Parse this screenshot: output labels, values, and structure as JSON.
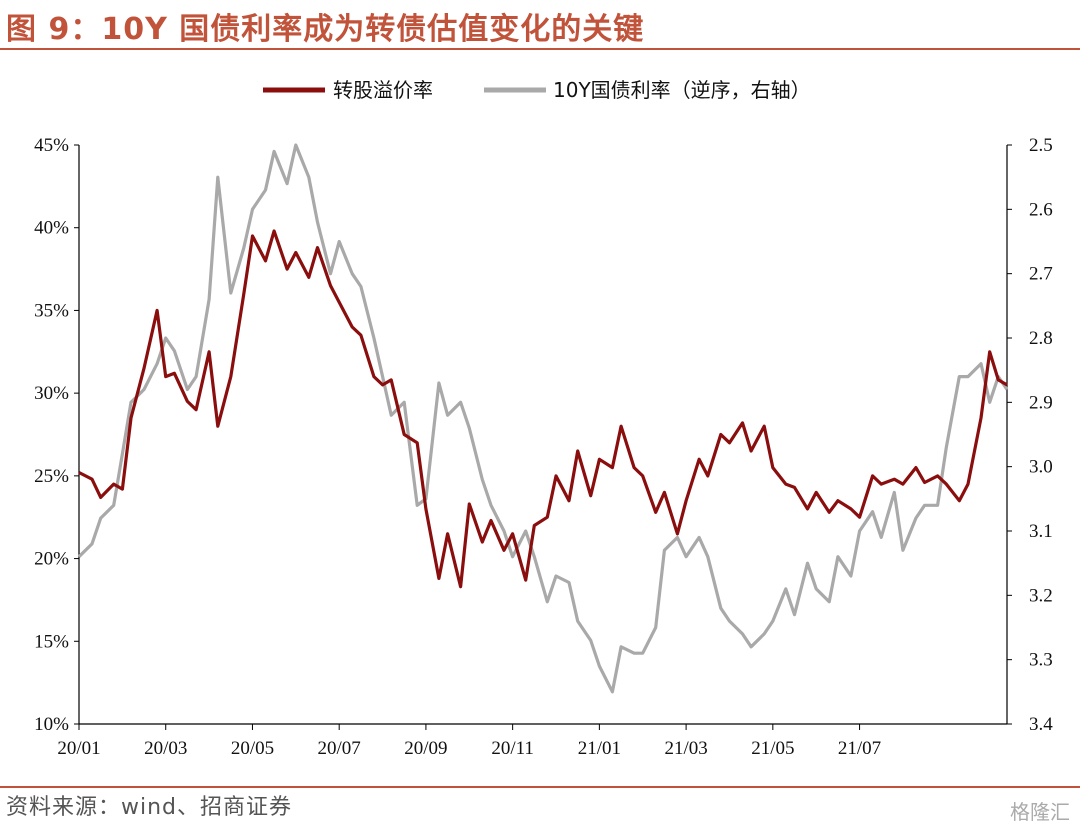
{
  "header": {
    "title": "图 9：10Y 国债利率成为转债估值变化的关键"
  },
  "footer": {
    "source": "资料来源：wind、招商证券",
    "watermark": "格隆汇"
  },
  "colors": {
    "accent": "#c0533a",
    "premium": "#8b0e0e",
    "yield": "#a9a9a9"
  },
  "chart_data": {
    "type": "line",
    "title": "10Y 国债利率成为转债估值变化的关键",
    "x_labels": [
      "20/01",
      "20/03",
      "20/05",
      "20/07",
      "20/09",
      "20/11",
      "21/01",
      "21/03",
      "21/05",
      "21/07"
    ],
    "x_range": [
      0,
      21.4
    ],
    "y_left": {
      "min": 10,
      "max": 45,
      "ticks": [
        "10%",
        "15%",
        "20%",
        "25%",
        "30%",
        "35%",
        "40%",
        "45%"
      ]
    },
    "y_right": {
      "min": 2.5,
      "max": 3.4,
      "inverted": true,
      "ticks": [
        "2.5",
        "2.6",
        "2.7",
        "2.8",
        "2.9",
        "3.0",
        "3.1",
        "3.2",
        "3.3",
        "3.4"
      ]
    },
    "legend": {
      "position": "top-center"
    },
    "series": [
      {
        "name": "转股溢价率",
        "axis": "left",
        "x": [
          0.0,
          0.3,
          0.5,
          0.8,
          1.0,
          1.2,
          1.5,
          1.8,
          2.0,
          2.2,
          2.5,
          2.7,
          3.0,
          3.2,
          3.5,
          3.8,
          4.0,
          4.3,
          4.5,
          4.8,
          5.0,
          5.3,
          5.5,
          5.8,
          6.0,
          6.3,
          6.5,
          6.8,
          7.0,
          7.2,
          7.5,
          7.8,
          8.0,
          8.3,
          8.5,
          8.8,
          9.0,
          9.3,
          9.5,
          9.8,
          10.0,
          10.3,
          10.5,
          10.8,
          11.0,
          11.3,
          11.5,
          11.8,
          12.0,
          12.3,
          12.5,
          12.8,
          13.0,
          13.3,
          13.5,
          13.8,
          14.0,
          14.3,
          14.5,
          14.8,
          15.0,
          15.3,
          15.5,
          15.8,
          16.0,
          16.3,
          16.5,
          16.8,
          17.0,
          17.3,
          17.5,
          17.8,
          18.0,
          18.3,
          18.5,
          18.8,
          19.0,
          19.3,
          19.5,
          19.8,
          20.0,
          20.3,
          20.5,
          20.8,
          21.0,
          21.2,
          21.4
        ],
        "values": [
          25.2,
          24.8,
          23.7,
          24.5,
          24.2,
          28.5,
          31.5,
          35.0,
          31.0,
          31.2,
          29.5,
          29.0,
          32.5,
          28.0,
          31.0,
          36.0,
          39.5,
          38.0,
          39.8,
          37.5,
          38.5,
          37.0,
          38.8,
          36.5,
          35.5,
          34.0,
          33.5,
          31.0,
          30.5,
          30.8,
          27.5,
          27.0,
          23.0,
          18.8,
          21.5,
          18.3,
          23.3,
          21.0,
          22.3,
          20.5,
          21.5,
          18.7,
          22.0,
          22.5,
          25.0,
          23.5,
          26.5,
          23.8,
          26.0,
          25.5,
          28.0,
          25.5,
          25.0,
          22.8,
          24.0,
          21.5,
          23.5,
          26.0,
          25.0,
          27.5,
          27.0,
          28.2,
          26.5,
          28.0,
          25.5,
          24.5,
          24.3,
          23.0,
          24.0,
          22.8,
          23.5,
          23.0,
          22.5,
          25.0,
          24.5,
          24.8,
          24.5,
          25.5,
          24.6,
          25.0,
          24.5,
          23.5,
          24.5,
          28.5,
          32.5,
          30.8,
          30.5
        ]
      },
      {
        "name": "10Y国债利率（逆序，右轴）",
        "axis": "right",
        "x": [
          0.0,
          0.3,
          0.5,
          0.8,
          1.0,
          1.2,
          1.5,
          1.8,
          2.0,
          2.2,
          2.5,
          2.7,
          3.0,
          3.2,
          3.5,
          3.8,
          4.0,
          4.3,
          4.5,
          4.8,
          5.0,
          5.3,
          5.5,
          5.8,
          6.0,
          6.3,
          6.5,
          6.8,
          7.0,
          7.2,
          7.5,
          7.8,
          8.0,
          8.3,
          8.5,
          8.8,
          9.0,
          9.3,
          9.5,
          9.8,
          10.0,
          10.3,
          10.5,
          10.8,
          11.0,
          11.3,
          11.5,
          11.8,
          12.0,
          12.3,
          12.5,
          12.8,
          13.0,
          13.3,
          13.5,
          13.8,
          14.0,
          14.3,
          14.5,
          14.8,
          15.0,
          15.3,
          15.5,
          15.8,
          16.0,
          16.3,
          16.5,
          16.8,
          17.0,
          17.3,
          17.5,
          17.8,
          18.0,
          18.3,
          18.5,
          18.8,
          19.0,
          19.3,
          19.5,
          19.8,
          20.0,
          20.3,
          20.5,
          20.8,
          21.0,
          21.2,
          21.4
        ],
        "values": [
          3.14,
          3.12,
          3.08,
          3.06,
          2.98,
          2.9,
          2.88,
          2.84,
          2.8,
          2.82,
          2.88,
          2.86,
          2.74,
          2.55,
          2.73,
          2.66,
          2.6,
          2.57,
          2.51,
          2.56,
          2.5,
          2.55,
          2.62,
          2.7,
          2.65,
          2.7,
          2.72,
          2.8,
          2.86,
          2.92,
          2.9,
          3.06,
          3.05,
          2.87,
          2.92,
          2.9,
          2.94,
          3.02,
          3.06,
          3.1,
          3.14,
          3.1,
          3.14,
          3.21,
          3.17,
          3.18,
          3.24,
          3.27,
          3.31,
          3.35,
          3.28,
          3.29,
          3.29,
          3.25,
          3.13,
          3.11,
          3.14,
          3.11,
          3.14,
          3.22,
          3.24,
          3.26,
          3.28,
          3.26,
          3.24,
          3.19,
          3.23,
          3.15,
          3.19,
          3.21,
          3.14,
          3.17,
          3.1,
          3.07,
          3.11,
          3.04,
          3.13,
          3.08,
          3.06,
          3.06,
          2.97,
          2.86,
          2.86,
          2.84,
          2.9,
          2.86,
          2.88
        ]
      }
    ]
  }
}
